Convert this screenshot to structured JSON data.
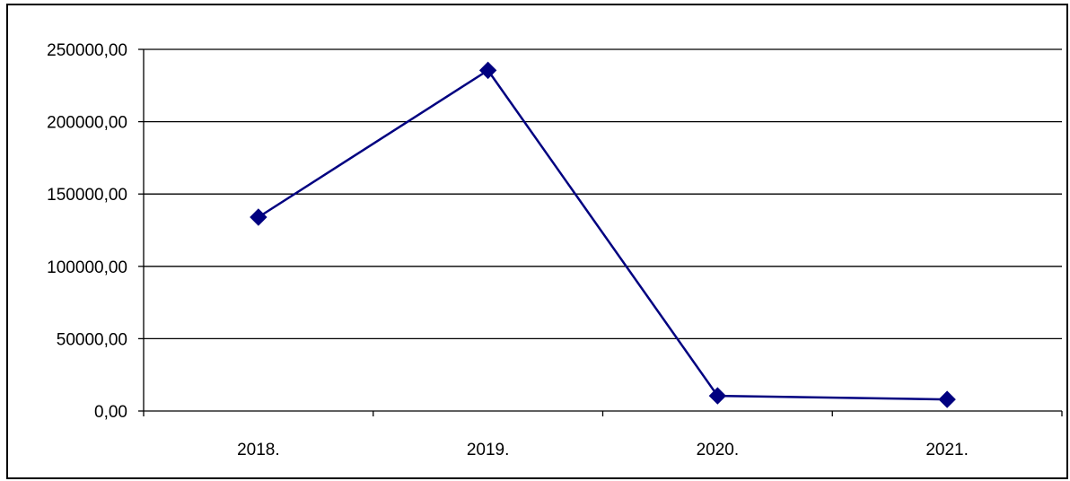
{
  "chart_data": {
    "type": "line",
    "title": "",
    "xlabel": "",
    "ylabel": "",
    "categories": [
      "2018.",
      "2019.",
      "2020.",
      "2021."
    ],
    "series": [
      {
        "values": [
          134000,
          235500,
          10500,
          8000
        ],
        "color": "#000080",
        "marker": "diamond"
      }
    ],
    "ylim": [
      0,
      250000
    ],
    "yticks": [
      0,
      50000,
      100000,
      150000,
      200000,
      250000
    ],
    "ytick_labels": [
      "0,00",
      "50000,00",
      "100000,00",
      "150000,00",
      "200000,00",
      "250000,00"
    ],
    "grid": true,
    "legend": "none"
  }
}
